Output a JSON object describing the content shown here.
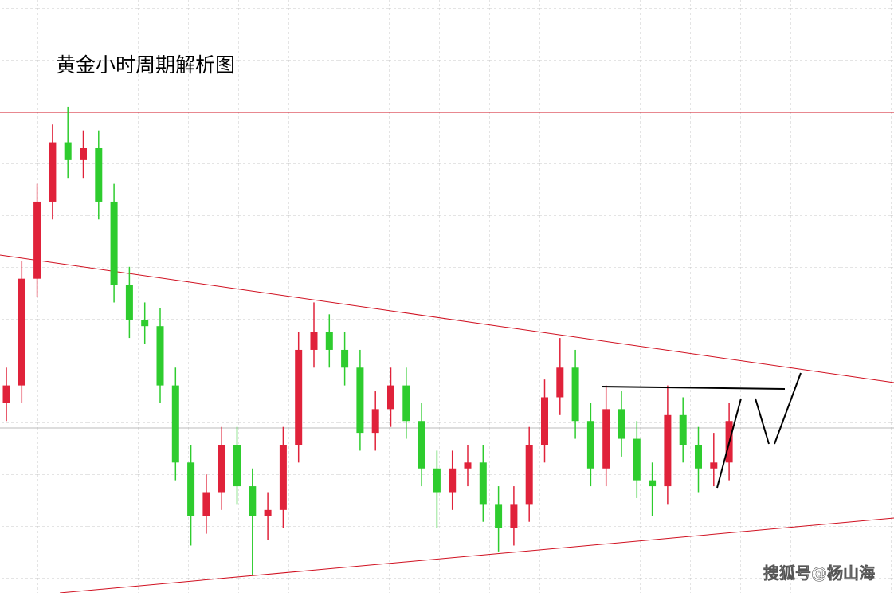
{
  "chart_data": {
    "type": "candlestick",
    "title": "黄金小时周期解析图",
    "watermark": "搜狐号@杨山海",
    "up_color": "#e0223a",
    "down_color": "#2ecc2e",
    "grid": true,
    "ylim": [
      0,
      100
    ],
    "open": [
      32,
      35,
      53,
      66,
      76,
      73,
      75,
      66,
      52,
      46,
      45,
      35,
      22,
      13,
      17,
      25,
      18,
      13,
      14,
      25,
      41,
      44,
      41,
      38,
      27,
      31,
      35,
      29,
      21,
      17,
      21,
      22,
      15,
      11,
      15,
      25,
      33,
      38,
      29,
      21,
      31,
      26,
      19,
      18,
      30,
      25,
      21,
      22
    ],
    "high": [
      38,
      56,
      69,
      79,
      82,
      78,
      78,
      69,
      55,
      49,
      48,
      38,
      25,
      20,
      28,
      28,
      21,
      17,
      28,
      44,
      49,
      47,
      44,
      41,
      34,
      38,
      38,
      32,
      24,
      24,
      25,
      25,
      18,
      18,
      28,
      36,
      43,
      41,
      32,
      35,
      34,
      29,
      22,
      35,
      33,
      28,
      27,
      32
    ],
    "low": [
      29,
      32,
      50,
      63,
      70,
      70,
      63,
      49,
      43,
      42,
      32,
      19,
      8,
      10,
      14,
      15,
      3,
      9,
      11,
      22,
      38,
      38,
      35,
      24,
      24,
      28,
      26,
      18,
      11,
      14,
      18,
      12,
      7,
      8,
      12,
      22,
      30,
      26,
      18,
      18,
      23,
      16,
      13,
      15,
      22,
      17,
      18,
      19
    ],
    "close": [
      35,
      53,
      66,
      76,
      73,
      75,
      66,
      52,
      46,
      45,
      35,
      22,
      13,
      17,
      25,
      18,
      13,
      14,
      25,
      41,
      44,
      41,
      38,
      27,
      31,
      35,
      29,
      21,
      17,
      21,
      22,
      15,
      11,
      15,
      25,
      33,
      38,
      29,
      21,
      31,
      26,
      19,
      18,
      30,
      25,
      21,
      22,
      29
    ]
  }
}
